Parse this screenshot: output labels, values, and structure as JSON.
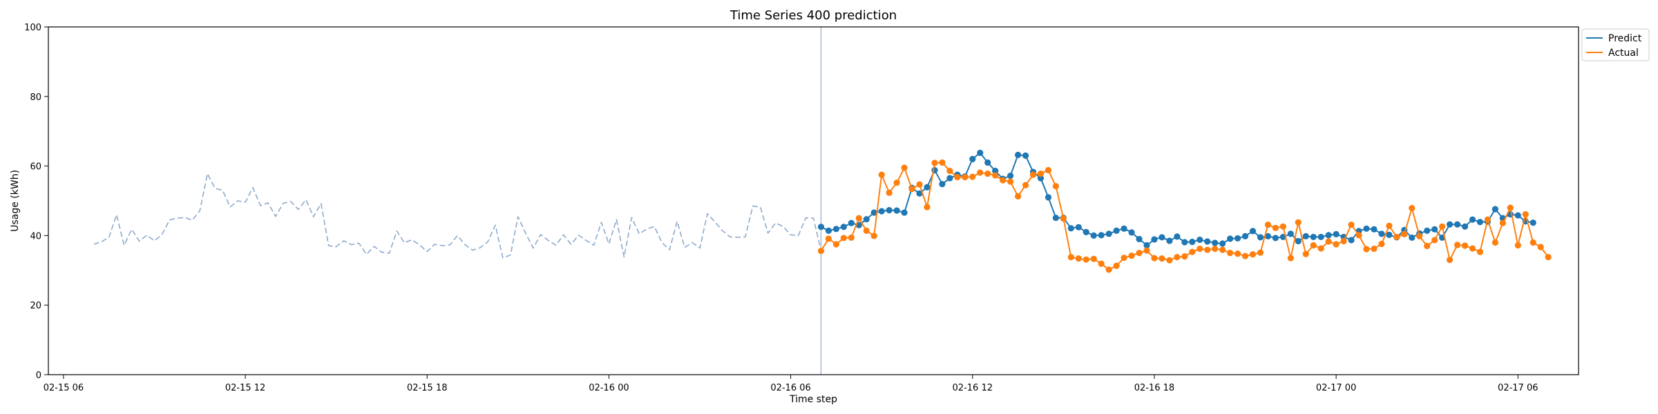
{
  "chart_data": {
    "type": "line",
    "title": "Time Series 400 prediction",
    "xlabel": "Time step",
    "ylabel": "Usage (kWh)",
    "ylim": [
      0,
      100
    ],
    "yticks": [
      0,
      20,
      40,
      60,
      80,
      100
    ],
    "x_axis": {
      "start": "02-15 05:30",
      "end": "02-17 08:00",
      "ticks": [
        "02-15 06",
        "02-15 12",
        "02-15 18",
        "02-16 00",
        "02-16 06",
        "02-16 12",
        "02-16 18",
        "02-17 00",
        "02-17 06"
      ]
    },
    "grid": false,
    "legend": {
      "position": "top-right",
      "entries": [
        "Predict",
        "Actual"
      ]
    },
    "forecast_start": "02-16 07:00",
    "colors": {
      "history": "#8eaacb",
      "predict": "#1f77b4",
      "actual": "#ff7f0e",
      "divider": "#8eaacb"
    },
    "series": [
      {
        "name": "",
        "role": "history",
        "style": "dashed",
        "start": "02-15 07:00",
        "step_minutes": 15,
        "values": [
          37.5,
          38.2,
          39.5,
          46.0,
          37.2,
          41.8,
          38.4,
          40.1,
          38.5,
          40.3,
          44.5,
          45.0,
          45.2,
          44.4,
          47.2,
          57.8,
          53.6,
          53.0,
          48.2,
          50.0,
          49.6,
          53.8,
          48.6,
          49.4,
          45.5,
          49.3,
          49.8,
          47.5,
          50.3,
          45.4,
          49.2,
          37.1,
          36.8,
          38.5,
          37.4,
          37.8,
          34.6,
          36.9,
          35.2,
          34.9,
          41.3,
          37.9,
          38.8,
          37.3,
          35.4,
          37.5,
          37.1,
          37.3,
          40.0,
          37.4,
          35.8,
          36.5,
          38.2,
          43.0,
          33.6,
          34.4,
          45.4,
          40.7,
          36.4,
          40.3,
          38.6,
          37.2,
          40.2,
          37.5,
          40.1,
          38.6,
          37.2,
          43.8,
          37.6,
          44.6,
          33.8,
          45.2,
          40.5,
          41.9,
          42.6,
          38.0,
          35.9,
          44.1,
          36.6,
          38.0,
          36.4,
          46.3,
          43.9,
          41.4,
          39.6,
          39.5,
          39.6,
          48.5,
          48.1,
          40.7,
          43.6,
          42.6,
          40.2,
          40.0,
          45.1,
          45.0,
          35.6
        ]
      },
      {
        "name": "Predict",
        "role": "predict",
        "style": "solid-markers",
        "start": "02-16 07:00",
        "step_minutes": 15,
        "values": [
          42.5,
          41.4,
          41.9,
          42.5,
          43.6,
          43.0,
          44.7,
          46.6,
          47.0,
          47.3,
          47.2,
          46.6,
          53.7,
          52.1,
          53.9,
          58.8,
          54.8,
          56.5,
          57.5,
          57.0,
          62.0,
          63.8,
          61.0,
          58.6,
          56.3,
          57.2,
          63.2,
          63.0,
          58.3,
          56.5,
          51.0,
          45.1,
          45.1,
          42.1,
          42.4,
          41.0,
          40.0,
          40.1,
          40.5,
          41.4,
          42.0,
          40.9,
          39.0,
          37.2,
          38.9,
          39.5,
          38.5,
          39.7,
          38.1,
          38.2,
          38.8,
          38.3,
          37.9,
          37.7,
          39.1,
          39.2,
          39.8,
          41.3,
          39.5,
          39.8,
          39.3,
          39.6,
          40.5,
          38.4,
          39.8,
          39.6,
          39.6,
          40.1,
          40.4,
          39.6,
          38.7,
          41.3,
          42.0,
          41.8,
          40.5,
          40.2,
          39.5,
          41.6,
          39.4,
          40.6,
          41.4,
          41.8,
          39.4,
          43.2,
          43.2,
          42.6,
          44.6,
          43.9,
          44.0,
          47.6,
          45.0,
          46.1,
          45.8,
          44.1,
          43.7
        ]
      },
      {
        "name": "Actual",
        "role": "actual",
        "style": "solid-markers",
        "start": "02-16 07:00",
        "step_minutes": 15,
        "values": [
          35.6,
          39.1,
          37.5,
          39.3,
          39.4,
          45.0,
          41.4,
          39.9,
          57.5,
          52.3,
          55.2,
          59.5,
          53.4,
          54.7,
          48.2,
          60.9,
          61.0,
          58.6,
          56.8,
          56.8,
          56.9,
          58.1,
          57.8,
          57.3,
          55.9,
          55.5,
          51.3,
          54.5,
          57.5,
          57.8,
          58.8,
          54.2,
          44.9,
          33.8,
          33.4,
          33.1,
          33.3,
          31.9,
          30.2,
          31.3,
          33.6,
          34.2,
          35.0,
          35.7,
          33.5,
          33.4,
          32.9,
          33.8,
          34.0,
          35.3,
          36.2,
          35.9,
          36.2,
          35.9,
          35.0,
          34.8,
          34.1,
          34.6,
          35.1,
          43.1,
          42.2,
          42.6,
          33.5,
          43.8,
          34.7,
          37.2,
          36.3,
          38.3,
          37.5,
          38.4,
          43.1,
          40.1,
          36.1,
          36.2,
          37.6,
          42.8,
          39.6,
          40.4,
          47.9,
          39.8,
          37.0,
          38.7,
          42.6,
          33.0,
          37.3,
          37.1,
          36.3,
          35.3,
          44.6,
          38.0,
          43.6,
          48.0,
          37.2,
          46.1,
          38.0,
          36.7,
          33.8
        ]
      }
    ]
  }
}
